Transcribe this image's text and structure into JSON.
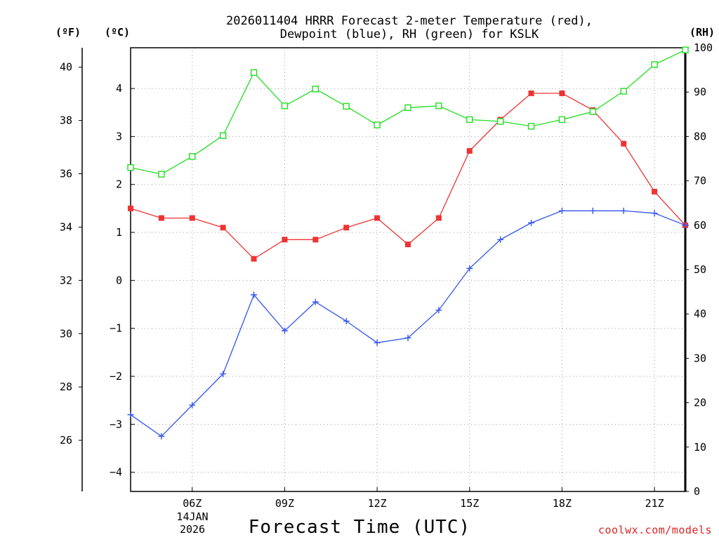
{
  "chart_data": {
    "type": "line",
    "title_line1": "2026011404 HRRR Forecast 2-meter Temperature (red),",
    "title_line2": "Dewpoint (blue), RH (green) for KSLK",
    "xlabel": "Forecast Time (UTC)",
    "credit": "coolwx.com/models",
    "date_label_line1": "14JAN",
    "date_label_line2": "2026",
    "units": {
      "fahrenheit": "(ºF)",
      "celsius": "(ºC)",
      "rh": "(RH)"
    },
    "x_range_hours": [
      4,
      22
    ],
    "x_ticks": [
      {
        "hour": 6,
        "label": "06Z"
      },
      {
        "hour": 9,
        "label": "09Z"
      },
      {
        "hour": 12,
        "label": "12Z"
      },
      {
        "hour": 15,
        "label": "15Z"
      },
      {
        "hour": 18,
        "label": "18Z"
      },
      {
        "hour": 21,
        "label": "21Z"
      }
    ],
    "y_celsius": {
      "range": [
        -4.4,
        4.85
      ],
      "ticks": [
        -4,
        -3,
        -2,
        -1,
        0,
        1,
        2,
        3,
        4
      ],
      "tick_labels": [
        "−4",
        "−3",
        "−2",
        "−1",
        "0",
        "1",
        "2",
        "3",
        "4"
      ]
    },
    "y_fahrenheit": {
      "ticks": [
        26,
        28,
        30,
        32,
        34,
        36,
        38,
        40
      ],
      "tick_labels": [
        "26",
        "28",
        "30",
        "32",
        "34",
        "36",
        "38",
        "40"
      ]
    },
    "y_rh": {
      "range": [
        0,
        100
      ],
      "ticks": [
        0,
        10,
        20,
        30,
        40,
        50,
        60,
        70,
        80,
        90,
        100
      ],
      "tick_labels": [
        "0",
        "10",
        "20",
        "30",
        "40",
        "50",
        "60",
        "70",
        "80",
        "90",
        "100"
      ]
    },
    "hours": [
      4,
      5,
      6,
      7,
      8,
      9,
      10,
      11,
      12,
      13,
      14,
      15,
      16,
      17,
      18,
      19,
      20,
      21,
      22
    ],
    "series": [
      {
        "name": "Temperature",
        "axis": "celsius",
        "color": "#ee3333",
        "marker": "filled-square",
        "values": [
          1.5,
          1.3,
          1.3,
          1.1,
          0.45,
          0.85,
          0.85,
          1.1,
          1.3,
          0.75,
          1.3,
          2.7,
          3.35,
          3.9,
          3.9,
          3.55,
          2.85,
          1.85,
          1.15
        ]
      },
      {
        "name": "Dewpoint",
        "axis": "celsius",
        "color": "#3355ee",
        "marker": "plus",
        "values": [
          -2.8,
          -3.25,
          -2.6,
          -1.95,
          -0.3,
          -1.05,
          -0.45,
          -0.85,
          -1.3,
          -1.2,
          -0.62,
          0.25,
          0.85,
          1.2,
          1.45,
          1.45,
          1.45,
          1.4,
          1.15
        ]
      },
      {
        "name": "RH",
        "axis": "rh",
        "color": "#22dd22",
        "marker": "open-square",
        "values": [
          73,
          71.5,
          75.5,
          80.2,
          94.4,
          86.9,
          90.7,
          86.8,
          82.6,
          86.5,
          86.9,
          83.8,
          83.4,
          82.3,
          83.8,
          85.6,
          90.2,
          96.2,
          99.5
        ]
      }
    ]
  }
}
